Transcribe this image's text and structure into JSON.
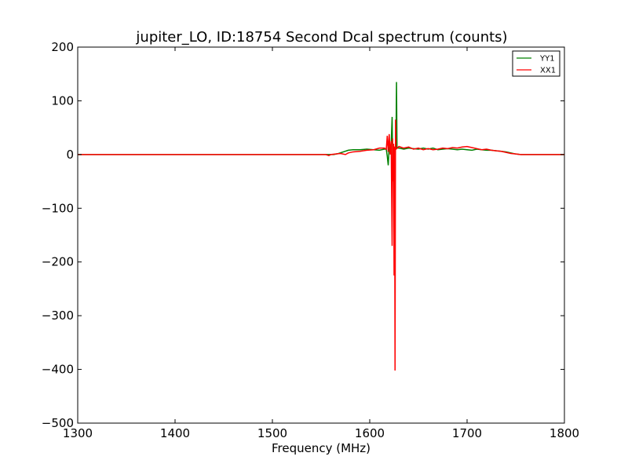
{
  "chart_data": {
    "type": "line",
    "title": "jupiter_LO, ID:18754 Second Dcal spectrum (counts)",
    "xlabel": "Frequency (MHz)",
    "ylabel": "",
    "xlim": [
      1300,
      1800
    ],
    "ylim": [
      -500,
      200
    ],
    "xticks": [
      1300,
      1400,
      1500,
      1600,
      1700,
      1800
    ],
    "yticks": [
      200,
      100,
      0,
      -100,
      -200,
      -300,
      -400,
      -500
    ],
    "grid": false,
    "legend": "top-right",
    "series": [
      {
        "name": "YY1",
        "color": "#008000",
        "points": [
          [
            1300,
            0
          ],
          [
            1450,
            0
          ],
          [
            1550,
            0
          ],
          [
            1558,
            0
          ],
          [
            1563,
            0
          ],
          [
            1568,
            2
          ],
          [
            1573,
            5
          ],
          [
            1578,
            8
          ],
          [
            1583,
            9
          ],
          [
            1590,
            9
          ],
          [
            1597,
            10
          ],
          [
            1604,
            9
          ],
          [
            1610,
            8
          ],
          [
            1615,
            10
          ],
          [
            1617,
            10
          ],
          [
            1618,
            -3
          ],
          [
            1619,
            -20
          ],
          [
            1620,
            15
          ],
          [
            1621,
            5
          ],
          [
            1622,
            18
          ],
          [
            1623,
            70
          ],
          [
            1623.5,
            -10
          ],
          [
            1624,
            5
          ],
          [
            1625,
            10
          ],
          [
            1626,
            5
          ],
          [
            1627,
            30
          ],
          [
            1627.5,
            135
          ],
          [
            1628,
            12
          ],
          [
            1630,
            12
          ],
          [
            1635,
            10
          ],
          [
            1640,
            12
          ],
          [
            1645,
            11
          ],
          [
            1650,
            10
          ],
          [
            1655,
            12
          ],
          [
            1660,
            10
          ],
          [
            1665,
            12
          ],
          [
            1670,
            9
          ],
          [
            1675,
            10
          ],
          [
            1680,
            11
          ],
          [
            1685,
            10
          ],
          [
            1690,
            9
          ],
          [
            1695,
            10
          ],
          [
            1700,
            9
          ],
          [
            1705,
            8
          ],
          [
            1710,
            10
          ],
          [
            1715,
            9
          ],
          [
            1720,
            8
          ],
          [
            1725,
            8
          ],
          [
            1730,
            7
          ],
          [
            1735,
            6
          ],
          [
            1740,
            5
          ],
          [
            1745,
            3
          ],
          [
            1750,
            1
          ],
          [
            1755,
            0
          ],
          [
            1760,
            0
          ],
          [
            1800,
            0
          ]
        ]
      },
      {
        "name": "XX1",
        "color": "#ff0000",
        "points": [
          [
            1300,
            0
          ],
          [
            1450,
            0
          ],
          [
            1555,
            0
          ],
          [
            1558,
            -2
          ],
          [
            1560,
            0
          ],
          [
            1565,
            1
          ],
          [
            1570,
            2
          ],
          [
            1575,
            0
          ],
          [
            1578,
            3
          ],
          [
            1583,
            5
          ],
          [
            1590,
            6
          ],
          [
            1597,
            8
          ],
          [
            1604,
            9
          ],
          [
            1610,
            12
          ],
          [
            1615,
            12
          ],
          [
            1617,
            10
          ],
          [
            1618,
            35
          ],
          [
            1619,
            5
          ],
          [
            1620,
            38
          ],
          [
            1621,
            0
          ],
          [
            1622,
            25
          ],
          [
            1623,
            -170
          ],
          [
            1623.5,
            30
          ],
          [
            1624,
            -50
          ],
          [
            1624.5,
            20
          ],
          [
            1625,
            -225
          ],
          [
            1625.5,
            15
          ],
          [
            1626,
            -402
          ],
          [
            1626.5,
            65
          ],
          [
            1627,
            10
          ],
          [
            1630,
            15
          ],
          [
            1635,
            12
          ],
          [
            1640,
            14
          ],
          [
            1645,
            10
          ],
          [
            1650,
            12
          ],
          [
            1655,
            9
          ],
          [
            1660,
            11
          ],
          [
            1665,
            9
          ],
          [
            1670,
            10
          ],
          [
            1675,
            12
          ],
          [
            1680,
            11
          ],
          [
            1685,
            13
          ],
          [
            1690,
            12
          ],
          [
            1695,
            14
          ],
          [
            1700,
            15
          ],
          [
            1705,
            13
          ],
          [
            1710,
            11
          ],
          [
            1715,
            9
          ],
          [
            1720,
            10
          ],
          [
            1725,
            8
          ],
          [
            1730,
            7
          ],
          [
            1735,
            6
          ],
          [
            1740,
            4
          ],
          [
            1745,
            2
          ],
          [
            1750,
            1
          ],
          [
            1755,
            0
          ],
          [
            1760,
            0
          ],
          [
            1800,
            0
          ]
        ]
      }
    ]
  }
}
